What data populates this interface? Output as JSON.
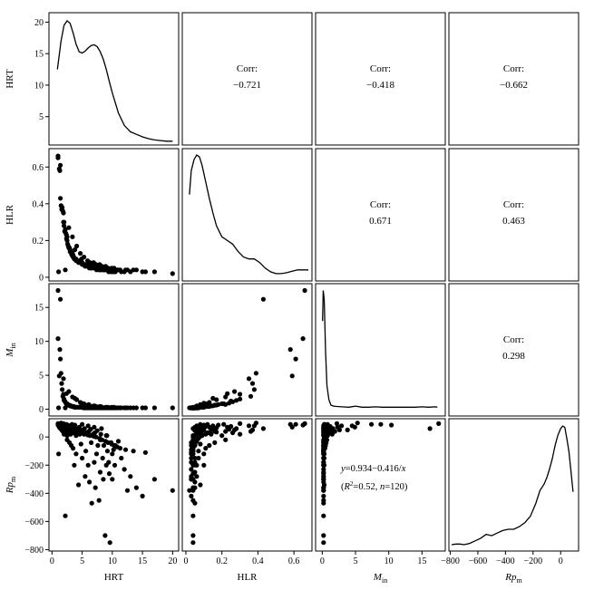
{
  "chart_data": {
    "type": "scatter",
    "subtype": "pairs-matrix",
    "variables": [
      {
        "key": "HRT",
        "row_label": "HRT",
        "col_label": "HRT"
      },
      {
        "key": "HLR",
        "row_label": "HLR",
        "col_label": "HLR"
      },
      {
        "key": "Min",
        "row_label": "M",
        "row_label_sub": "in",
        "col_label": "M",
        "col_label_sub": "in"
      },
      {
        "key": "Rpm",
        "row_label": "Rp",
        "row_label_sub": "m",
        "col_label": "Rp",
        "col_label_sub": "m"
      }
    ],
    "axes": {
      "HRT": {
        "range": [
          -0.5,
          21
        ],
        "ticks": [
          0,
          5,
          10,
          15,
          20
        ]
      },
      "HLR": {
        "range": [
          -0.02,
          0.7
        ],
        "ticks": [
          0,
          0.2,
          0.4,
          0.6
        ],
        "tick_labels": [
          "0",
          "0.2",
          "0.4",
          "0.6"
        ]
      },
      "Min": {
        "range": [
          -1,
          18.5
        ],
        "ticks": [
          0,
          5,
          10,
          15
        ]
      },
      "Rpm": {
        "range": [
          -810,
          130
        ],
        "ticks": [
          -800,
          -600,
          -400,
          -200,
          0
        ],
        "tick_labels": [
          "−800",
          "−600",
          "−400",
          "−200",
          "0"
        ]
      },
      "HRT_density_row": {
        "range": [
          0.5,
          21.5
        ],
        "ticks": [
          5,
          10,
          15,
          20
        ]
      }
    },
    "correlations": [
      {
        "row": 0,
        "col": 1,
        "label": "Corr:",
        "value": "−0.721"
      },
      {
        "row": 0,
        "col": 2,
        "label": "Corr:",
        "value": "−0.418"
      },
      {
        "row": 0,
        "col": 3,
        "label": "Corr:",
        "value": "−0.662"
      },
      {
        "row": 1,
        "col": 2,
        "label": "Corr:",
        "value": "0.671"
      },
      {
        "row": 1,
        "col": 3,
        "label": "Corr:",
        "value": "0.463"
      },
      {
        "row": 2,
        "col": 3,
        "label": "Corr:",
        "value": "0.298"
      }
    ],
    "fit_annotation": {
      "row": 3,
      "col": 2,
      "equation": {
        "parts": [
          {
            "t": "y",
            "i": true
          },
          {
            "t": "=0.934−0.416/"
          },
          {
            "t": "x",
            "i": true
          }
        ]
      },
      "stats": {
        "parts": [
          {
            "t": "("
          },
          {
            "t": "R",
            "i": true
          },
          {
            "t": "2",
            "sup": true
          },
          {
            "t": "=0.52, "
          },
          {
            "t": "n",
            "i": true
          },
          {
            "t": "=120)"
          }
        ]
      }
    },
    "densities": [
      {
        "var": "HRT",
        "x": [
          0.9,
          1.5,
          2,
          2.5,
          3,
          3.5,
          4,
          4.5,
          5,
          5.5,
          6,
          6.5,
          7,
          7.5,
          8,
          8.5,
          9,
          9.5,
          10,
          11,
          12,
          13,
          14,
          15,
          16,
          17,
          18,
          19,
          20
        ],
        "y": [
          12.5,
          17,
          19.5,
          20.2,
          19.8,
          18.3,
          16.5,
          15.3,
          15.1,
          15.4,
          15.9,
          16.3,
          16.4,
          16.1,
          15.3,
          14.1,
          12.5,
          10.6,
          8.8,
          5.6,
          3.6,
          2.6,
          2.2,
          1.8,
          1.5,
          1.3,
          1.2,
          1.1,
          1.1
        ]
      },
      {
        "var": "HLR",
        "x": [
          0.02,
          0.03,
          0.045,
          0.06,
          0.075,
          0.09,
          0.11,
          0.13,
          0.15,
          0.17,
          0.2,
          0.23,
          0.26,
          0.29,
          0.32,
          0.35,
          0.38,
          0.41,
          0.44,
          0.47,
          0.5,
          0.53,
          0.56,
          0.6,
          0.62,
          0.64,
          0.66,
          0.68
        ],
        "y": [
          0.45,
          0.58,
          0.64,
          0.665,
          0.655,
          0.61,
          0.52,
          0.43,
          0.35,
          0.28,
          0.22,
          0.2,
          0.18,
          0.14,
          0.11,
          0.1,
          0.1,
          0.08,
          0.05,
          0.03,
          0.02,
          0.02,
          0.025,
          0.035,
          0.04,
          0.04,
          0.04,
          0.04
        ]
      },
      {
        "var": "Min",
        "x": [
          0.05,
          0.15,
          0.3,
          0.5,
          0.7,
          1,
          1.3,
          1.7,
          2.2,
          3,
          4,
          5,
          6,
          7,
          8,
          9,
          10,
          11,
          12,
          13,
          14,
          15,
          16,
          17,
          17.3
        ],
        "y": [
          13,
          17.5,
          16.2,
          8.5,
          3.5,
          1.4,
          0.6,
          0.45,
          0.4,
          0.35,
          0.3,
          0.45,
          0.3,
          0.3,
          0.35,
          0.3,
          0.3,
          0.3,
          0.3,
          0.3,
          0.3,
          0.35,
          0.3,
          0.35,
          0.3
        ]
      },
      {
        "var": "Rpm",
        "x": [
          -790,
          -760,
          -730,
          -700,
          -660,
          -620,
          -580,
          -540,
          -500,
          -460,
          -420,
          -380,
          -340,
          -300,
          -260,
          -220,
          -180,
          -150,
          -120,
          -100,
          -80,
          -60,
          -40,
          -20,
          0,
          15,
          30,
          45,
          60,
          75,
          90
        ],
        "y": [
          0.03,
          0.035,
          0.035,
          0.03,
          0.04,
          0.06,
          0.08,
          0.11,
          0.1,
          0.12,
          0.14,
          0.15,
          0.15,
          0.17,
          0.2,
          0.25,
          0.35,
          0.45,
          0.5,
          0.55,
          0.62,
          0.7,
          0.8,
          0.88,
          0.93,
          0.95,
          0.94,
          0.85,
          0.75,
          0.6,
          0.44
        ]
      }
    ],
    "observations": {
      "HRT": [
        1,
        1,
        1.2,
        1.3,
        1.4,
        1.5,
        1.6,
        1.7,
        1.8,
        1.9,
        2,
        2,
        2.1,
        2.2,
        2.3,
        2.4,
        2.5,
        2.5,
        2.6,
        2.7,
        2.8,
        2.9,
        3,
        3,
        3.1,
        3.2,
        3.3,
        3.4,
        3.5,
        3.5,
        3.6,
        3.7,
        3.8,
        3.9,
        4,
        4,
        4.2,
        4.4,
        4.5,
        4.6,
        4.8,
        5,
        5,
        5.2,
        5.4,
        5.5,
        5.6,
        5.8,
        6,
        6,
        6.2,
        6.4,
        6.5,
        6.6,
        6.8,
        7,
        7,
        7.2,
        7.4,
        7.5,
        7.6,
        7.8,
        8,
        8,
        8.2,
        8.4,
        8.5,
        8.6,
        8.8,
        9,
        9,
        9.2,
        9.4,
        9.5,
        9.6,
        9.8,
        10,
        10,
        10.2,
        10.4,
        10.5,
        11,
        11.5,
        12,
        12.5,
        13,
        14,
        15,
        17,
        20,
        2.2,
        2.8,
        3.4,
        4.1,
        4.7,
        5.3,
        5.9,
        6.3,
        6.9,
        7.3,
        7.9,
        8.3,
        8.9,
        9.3,
        9.9,
        10.3,
        10.8,
        11.3,
        12.2,
        13.5,
        15.5,
        1.1,
        1.4,
        1.9,
        2.4,
        3.8,
        4.9,
        6.1,
        7.1,
        8.1,
        9.1
      ],
      "HLR": [
        0.66,
        0.65,
        0.59,
        0.58,
        0.43,
        0.39,
        0.37,
        0.38,
        0.36,
        0.3,
        0.3,
        0.28,
        0.25,
        0.26,
        0.24,
        0.21,
        0.2,
        0.22,
        0.18,
        0.17,
        0.16,
        0.16,
        0.15,
        0.14,
        0.14,
        0.13,
        0.12,
        0.13,
        0.12,
        0.11,
        0.11,
        0.1,
        0.1,
        0.1,
        0.09,
        0.1,
        0.09,
        0.08,
        0.08,
        0.09,
        0.08,
        0.08,
        0.07,
        0.07,
        0.07,
        0.06,
        0.07,
        0.06,
        0.06,
        0.06,
        0.05,
        0.06,
        0.05,
        0.05,
        0.06,
        0.05,
        0.05,
        0.05,
        0.04,
        0.05,
        0.05,
        0.04,
        0.05,
        0.04,
        0.04,
        0.05,
        0.04,
        0.04,
        0.04,
        0.04,
        0.05,
        0.04,
        0.03,
        0.04,
        0.04,
        0.03,
        0.04,
        0.03,
        0.03,
        0.04,
        0.03,
        0.04,
        0.03,
        0.03,
        0.04,
        0.03,
        0.04,
        0.03,
        0.03,
        0.02,
        0.04,
        0.27,
        0.22,
        0.17,
        0.13,
        0.11,
        0.09,
        0.08,
        0.08,
        0.07,
        0.07,
        0.06,
        0.06,
        0.05,
        0.05,
        0.05,
        0.04,
        0.04,
        0.04,
        0.04,
        0.03,
        0.03,
        0.61,
        0.35,
        0.23,
        0.15,
        0.1,
        0.08,
        0.06,
        0.06,
        0.05,
        0.04
      ],
      "Min": [
        17.5,
        10.4,
        4.9,
        8.8,
        16.2,
        5.3,
        3.8,
        2.9,
        1.9,
        2.2,
        1.5,
        1.3,
        1.2,
        1.1,
        0.9,
        0.8,
        0.8,
        0.7,
        0.7,
        0.6,
        0.6,
        0.6,
        0.5,
        0.5,
        0.5,
        0.5,
        0.4,
        0.4,
        0.4,
        0.4,
        0.4,
        0.3,
        0.3,
        0.3,
        0.3,
        0.3,
        0.3,
        0.3,
        0.3,
        0.3,
        0.3,
        0.3,
        0.3,
        0.2,
        0.2,
        0.2,
        0.2,
        0.2,
        0.2,
        0.2,
        0.2,
        0.2,
        0.2,
        0.2,
        0.2,
        0.2,
        0.2,
        0.2,
        0.2,
        0.2,
        0.2,
        0.2,
        0.2,
        0.2,
        0.2,
        0.2,
        0.2,
        0.2,
        0.2,
        0.2,
        0.2,
        0.2,
        0.2,
        0.2,
        0.2,
        0.2,
        0.2,
        0.2,
        0.2,
        0.2,
        0.2,
        0.2,
        0.2,
        0.2,
        0.2,
        0.2,
        0.2,
        0.2,
        0.2,
        0.2,
        0.2,
        2.6,
        1.8,
        1.4,
        1,
        0.8,
        0.6,
        0.5,
        0.5,
        0.4,
        0.4,
        0.3,
        0.3,
        0.3,
        0.3,
        0.3,
        0.2,
        0.2,
        0.2,
        0.2,
        0.2,
        0.2,
        7.4,
        4.5,
        2.3,
        1.6,
        0.9,
        0.7,
        0.5,
        0.4,
        0.3,
        0.3
      ],
      "Rpm": [
        95,
        85,
        70,
        90,
        60,
        100,
        50,
        80,
        40,
        95,
        20,
        60,
        75,
        30,
        55,
        90,
        10,
        -20,
        85,
        65,
        40,
        -40,
        80,
        50,
        20,
        -60,
        90,
        70,
        30,
        -80,
        75,
        -200,
        85,
        60,
        10,
        -120,
        50,
        -340,
        70,
        20,
        -50,
        90,
        -150,
        40,
        60,
        -280,
        -100,
        30,
        80,
        -200,
        -320,
        55,
        -40,
        -470,
        20,
        70,
        -180,
        -360,
        -120,
        45,
        -60,
        -450,
        -250,
        -20,
        60,
        -150,
        -300,
        -60,
        -700,
        10,
        -200,
        -100,
        -180,
        -260,
        -750,
        -40,
        -120,
        -300,
        -90,
        -200,
        -60,
        -30,
        -150,
        -230,
        -380,
        -280,
        -360,
        -420,
        -300,
        -380,
        -560,
        50,
        40,
        35,
        30,
        20,
        15,
        10,
        5,
        0,
        -10,
        -20,
        -30,
        -40,
        -50,
        -60,
        -70,
        -80,
        -90,
        -100,
        -110,
        -120,
        90,
        80,
        70,
        60,
        50,
        40,
        30,
        20,
        10,
        0
      ]
    }
  }
}
